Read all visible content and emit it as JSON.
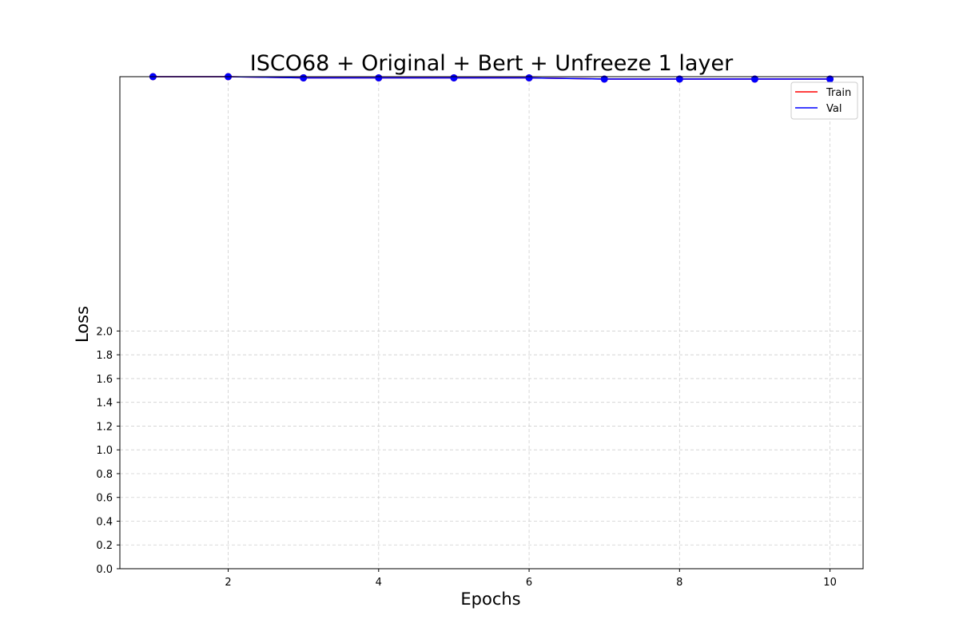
{
  "chart_data": {
    "type": "line",
    "title": "ISCO68 + Original + Bert + Unfreeze 1 layer",
    "xlabel": "Epochs",
    "ylabel": "Loss",
    "x": [
      1,
      2,
      3,
      4,
      5,
      6,
      7,
      8,
      9,
      10
    ],
    "xlim": [
      0.56,
      10.44
    ],
    "ylim": [
      0.0,
      4.14
    ],
    "xticks": [
      2,
      4,
      6,
      8,
      10
    ],
    "xtick_labels": [
      "2",
      "4",
      "6",
      "8",
      "10"
    ],
    "yticks": [
      0.0,
      0.2,
      0.4,
      0.6,
      0.8,
      1.0,
      1.2,
      1.4,
      1.6,
      1.8,
      2.0
    ],
    "ytick_labels": [
      "0.0",
      "0.2",
      "0.4",
      "0.6",
      "0.8",
      "1.0",
      "1.2",
      "1.4",
      "1.6",
      "1.8",
      "2.0"
    ],
    "grid": true,
    "legend_position": "top-right",
    "series": [
      {
        "name": "Train",
        "color": "#ff0000",
        "values": [
          4.14,
          4.14,
          4.13,
          4.13,
          4.13,
          4.13,
          4.12,
          4.12,
          4.12,
          4.12
        ]
      },
      {
        "name": "Val",
        "color": "#0000ff",
        "values": [
          4.14,
          4.14,
          4.13,
          4.13,
          4.13,
          4.13,
          4.12,
          4.12,
          4.12,
          4.12
        ]
      }
    ]
  }
}
